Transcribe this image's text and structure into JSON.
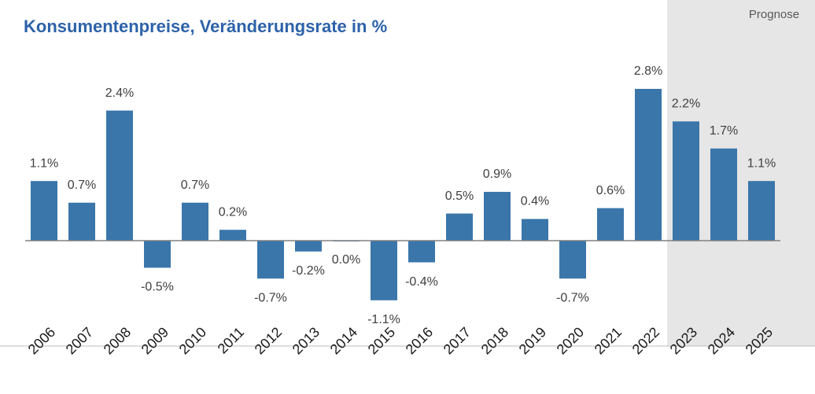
{
  "chart_data": {
    "type": "bar",
    "title": "Konsumentenpreise, Veränderungsrate in %",
    "categories": [
      "2006",
      "2007",
      "2008",
      "2009",
      "2010",
      "2011",
      "2012",
      "2013",
      "2014",
      "2015",
      "2016",
      "2017",
      "2018",
      "2019",
      "2020",
      "2021",
      "2022",
      "2023",
      "2024",
      "2025"
    ],
    "values": [
      1.1,
      0.7,
      2.4,
      -0.5,
      0.7,
      0.2,
      -0.7,
      -0.2,
      0.0,
      -1.1,
      -0.4,
      0.5,
      0.9,
      0.4,
      -0.7,
      0.6,
      2.8,
      2.2,
      1.7,
      1.1
    ],
    "value_labels": [
      "1.1%",
      "0.7%",
      "2.4%",
      "-0.5%",
      "0.7%",
      "0.2%",
      "-0.7%",
      "-0.2%",
      "0.0%",
      "-1.1%",
      "-0.4%",
      "0.5%",
      "0.9%",
      "0.4%",
      "-0.7%",
      "0.6%",
      "2.8%",
      "2.2%",
      "1.7%",
      "1.1%"
    ],
    "color": "#3a76aa",
    "annotations": [
      {
        "text": "Prognose",
        "from": "2023",
        "to": "2025"
      }
    ]
  }
}
